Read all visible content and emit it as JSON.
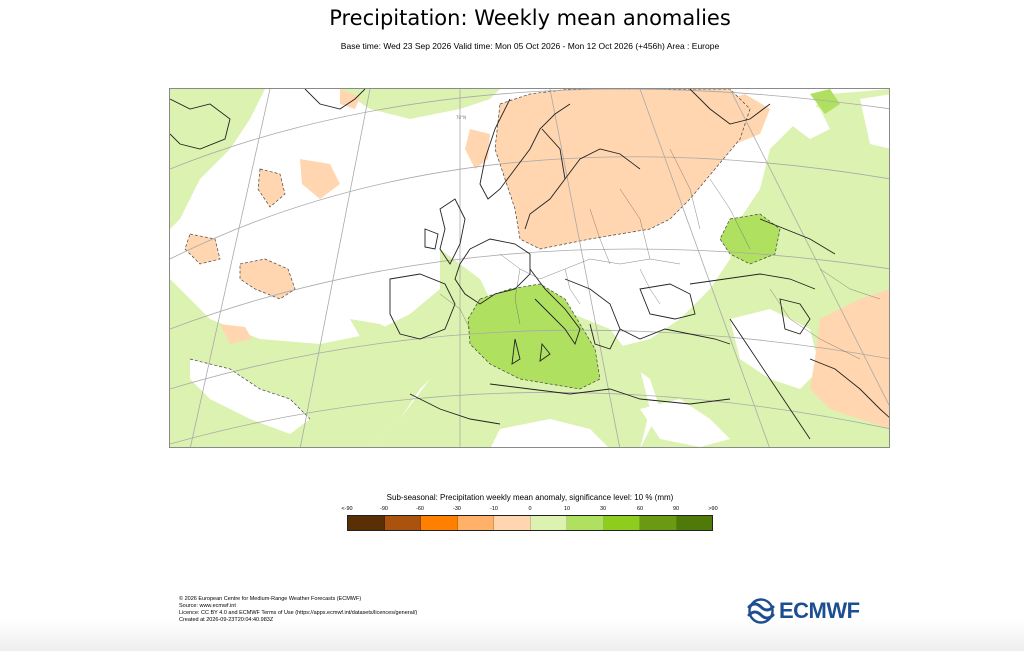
{
  "header": {
    "title": "Precipitation: Weekly mean anomalies",
    "subtitle": "Base time: Wed 23 Sep 2026 Valid time: Mon 05 Oct 2026 - Mon 12 Oct 2026 (+456h) Area : Europe"
  },
  "map": {
    "region": "Europe",
    "graticule_label": "70°N",
    "colors": {
      "land_outline": "#222222",
      "graticule": "#a9a9a9",
      "sig_contour": "#333333"
    }
  },
  "legend": {
    "title": "Sub-seasonal: Precipitation weekly mean anomaly, significance level: 10 % (mm)",
    "tick_labels": [
      "<-90",
      "-90",
      "-60",
      "-30",
      "-10",
      "0",
      "10",
      "30",
      "60",
      "90",
      ">90"
    ],
    "colors": [
      "#5a2f06",
      "#a9530f",
      "#ff8000",
      "#ffb069",
      "#ffd6b0",
      "#dcf2b0",
      "#b0e060",
      "#8ccd1e",
      "#6a9a12",
      "#4f7a0a"
    ]
  },
  "footer": {
    "lines": [
      "© 2026 European Centre for Medium-Range Weather Forecasts (ECMWF)",
      "Source: www.ecmwf.int",
      "Licence: CC BY 4.0 and ECMWF Terms of Use (https://apps.ecmwf.int/datasets/licences/general/)",
      "Created at 2026-09-23T20:04:40.983Z"
    ]
  },
  "logo": {
    "text": "ECMWF",
    "color": "#1d4e92"
  }
}
